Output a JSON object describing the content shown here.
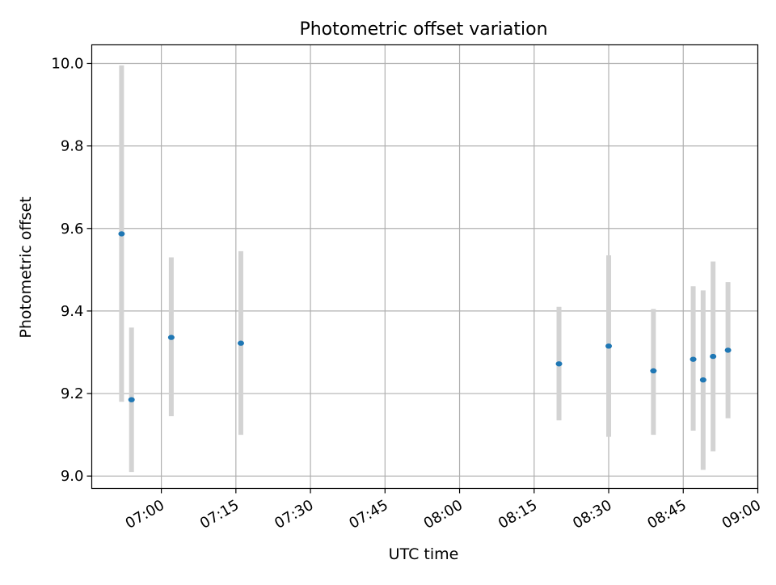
{
  "chart_data": {
    "type": "scatter",
    "title": "Photometric offset variation",
    "xlabel": "UTC time",
    "ylabel": "Photometric offset",
    "x_ticks": [
      "07:00",
      "07:15",
      "07:30",
      "07:45",
      "08:00",
      "08:15",
      "08:30",
      "08:45",
      "09:00"
    ],
    "y_ticks": [
      "9.0",
      "9.2",
      "9.4",
      "9.6",
      "9.8",
      "10.0"
    ],
    "xlim": [
      "06:46",
      "09:00"
    ],
    "ylim": [
      8.97,
      10.045
    ],
    "grid": true,
    "point_color": "#1f77b4",
    "errorbar_color": "#d3d3d3",
    "points": [
      {
        "x": "06:52",
        "y": 9.587,
        "lo": 9.18,
        "hi": 9.995
      },
      {
        "x": "06:54",
        "y": 9.185,
        "lo": 9.01,
        "hi": 9.36
      },
      {
        "x": "07:02",
        "y": 9.336,
        "lo": 9.145,
        "hi": 9.53
      },
      {
        "x": "07:16",
        "y": 9.322,
        "lo": 9.1,
        "hi": 9.545
      },
      {
        "x": "08:20",
        "y": 9.272,
        "lo": 9.135,
        "hi": 9.41
      },
      {
        "x": "08:30",
        "y": 9.315,
        "lo": 9.095,
        "hi": 9.535
      },
      {
        "x": "08:39",
        "y": 9.255,
        "lo": 9.1,
        "hi": 9.405
      },
      {
        "x": "08:47",
        "y": 9.283,
        "lo": 9.11,
        "hi": 9.46
      },
      {
        "x": "08:49",
        "y": 9.233,
        "lo": 9.015,
        "hi": 9.45
      },
      {
        "x": "08:51",
        "y": 9.29,
        "lo": 9.06,
        "hi": 9.52
      },
      {
        "x": "08:54",
        "y": 9.305,
        "lo": 9.14,
        "hi": 9.47
      }
    ]
  }
}
